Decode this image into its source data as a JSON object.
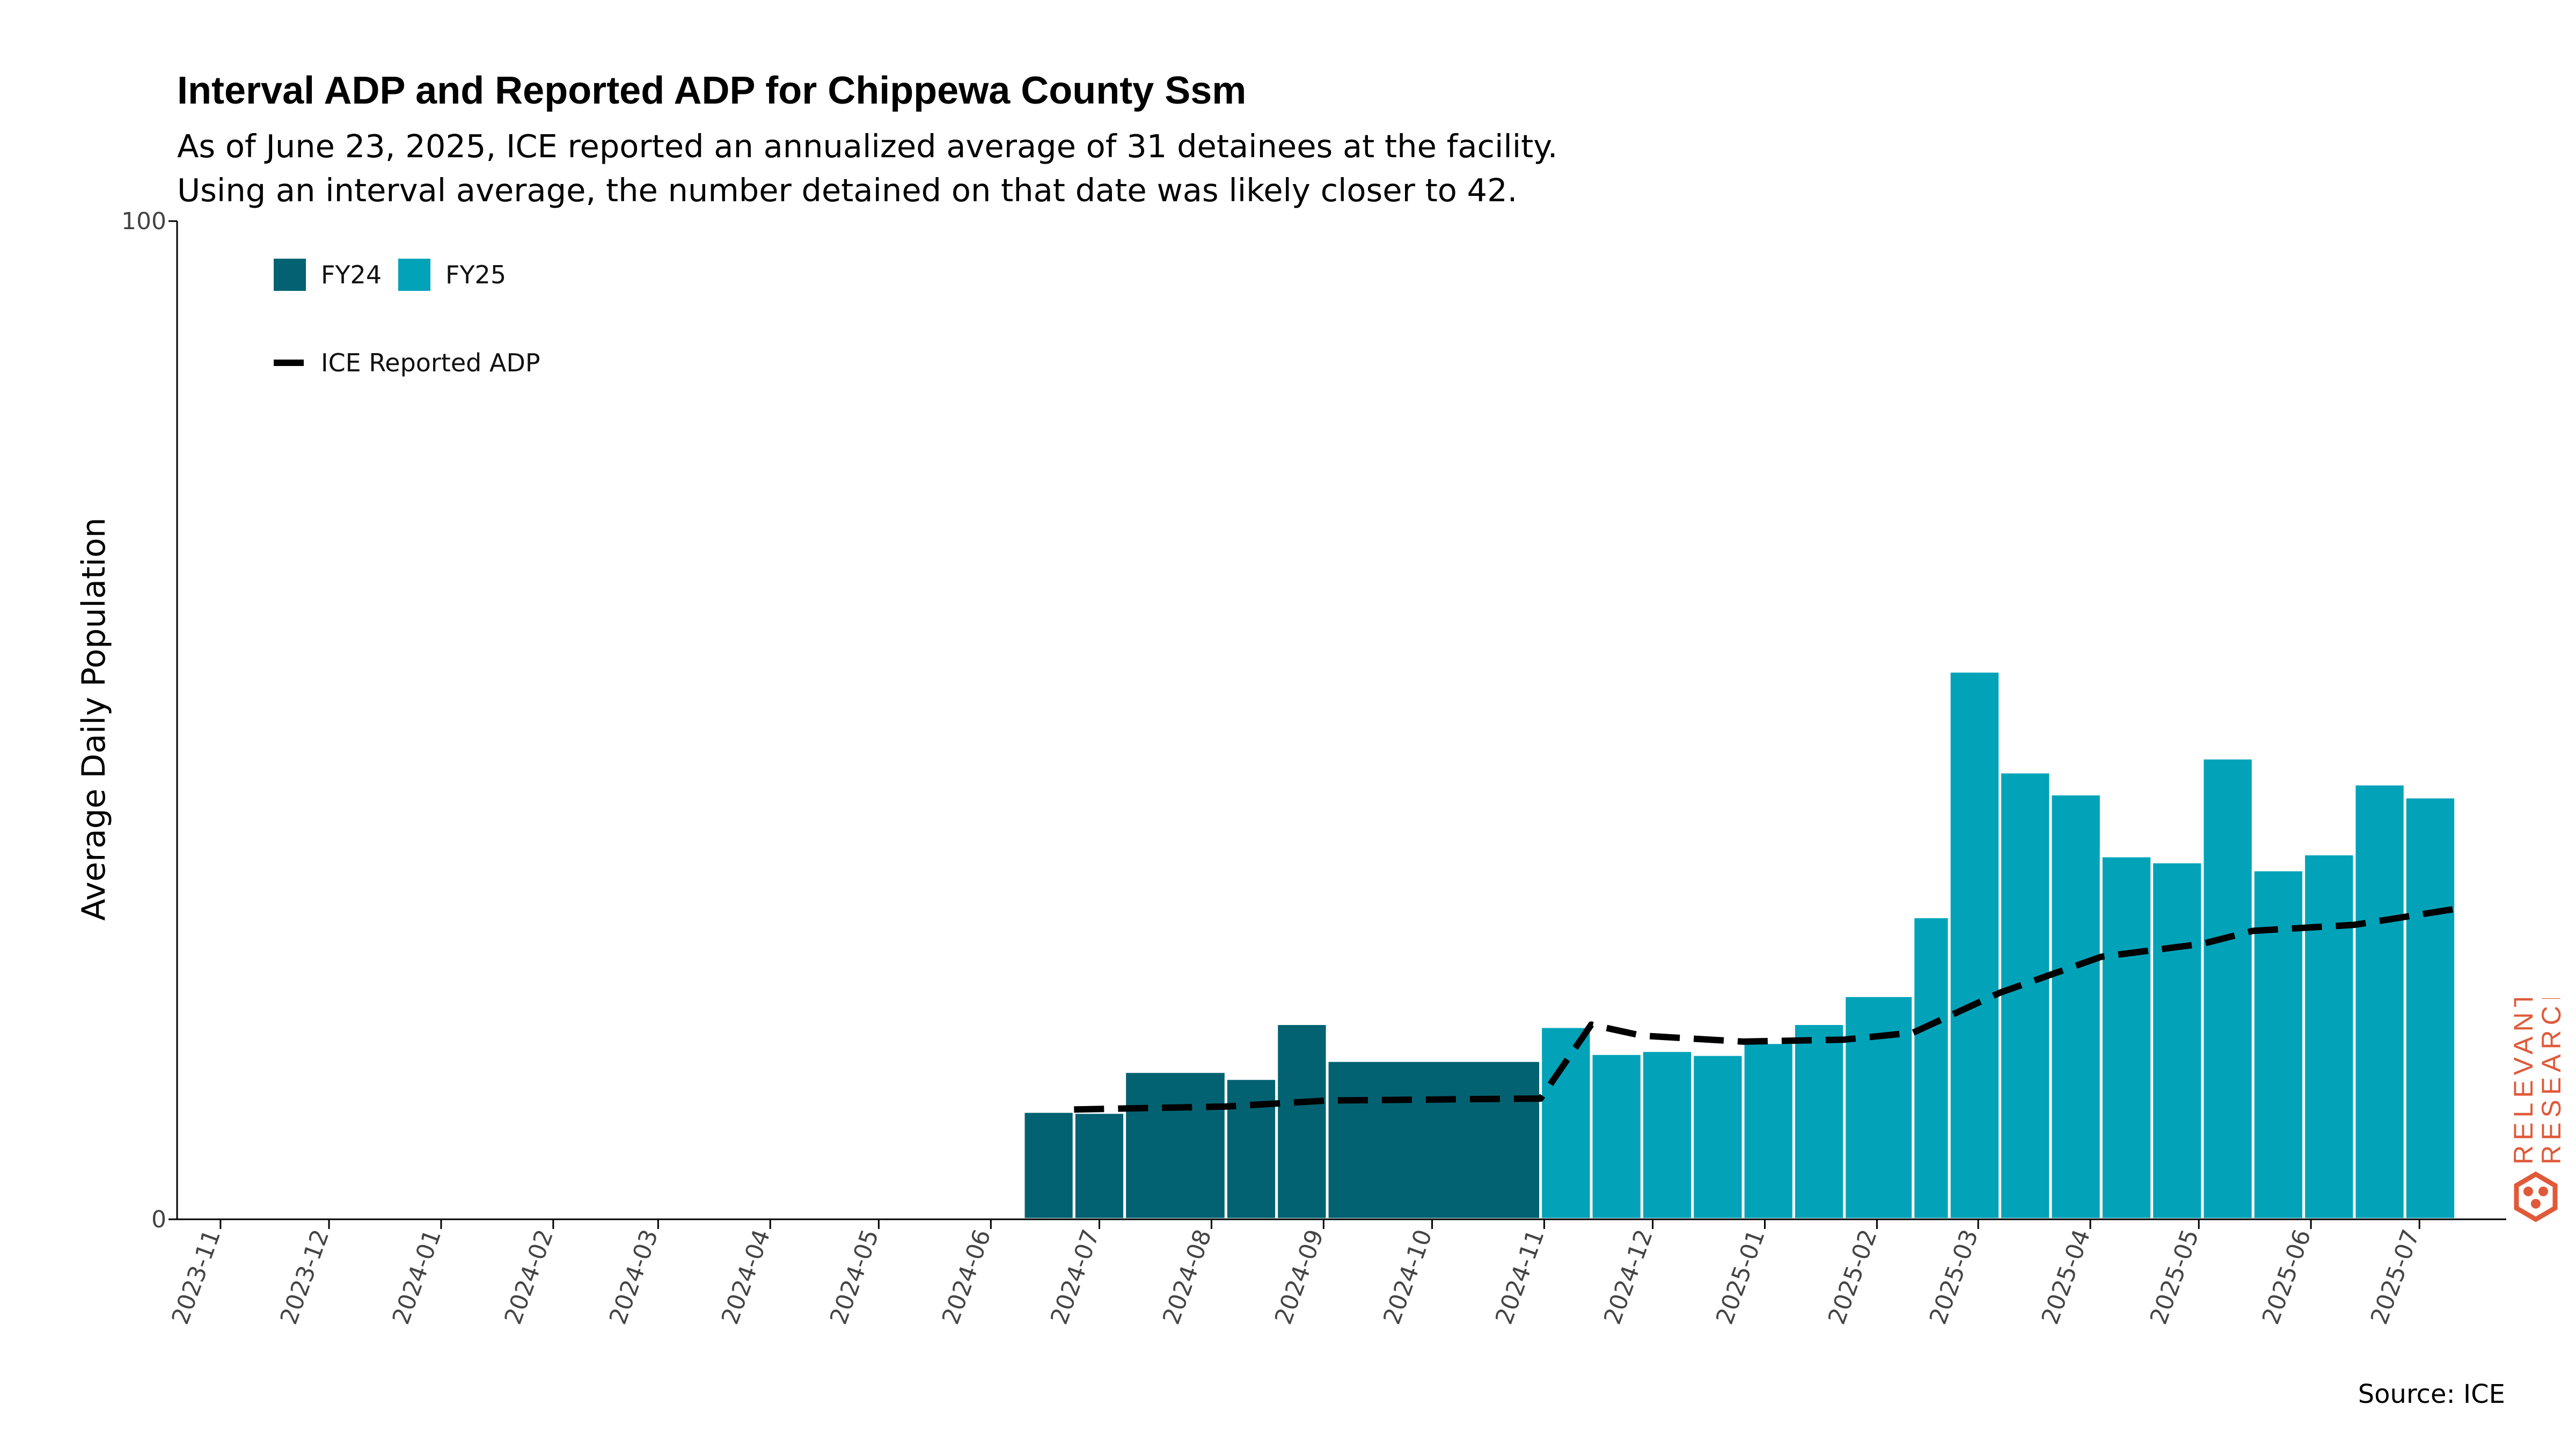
{
  "title": "Interval ADP and Reported ADP for Chippewa County Ssm",
  "subtitle_lines": [
    "As of June 23, 2025, ICE reported an annualized average of 31 detainees at the facility.",
    "Using an interval average, the number detained on that date was likely closer to 42."
  ],
  "source": "Source: ICE",
  "logo": {
    "line1": "RELEVANT",
    "line2": "RESEARCH",
    "color": "#e05a3a"
  },
  "colors": {
    "FY24": "#036272",
    "FY25": "#02a3b9",
    "line": "#000000"
  },
  "chart_data": {
    "type": "bar",
    "title": "Interval ADP and Reported ADP for Chippewa County Ssm",
    "ylabel": "Average Daily Population",
    "xlabel": "",
    "ylim": [
      0,
      100
    ],
    "yticks": [
      0,
      100
    ],
    "x_ticks": [
      "2023-11",
      "2023-12",
      "2024-01",
      "2024-02",
      "2024-03",
      "2024-04",
      "2024-05",
      "2024-06",
      "2024-07",
      "2024-08",
      "2024-09",
      "2024-10",
      "2024-11",
      "2024-12",
      "2025-01",
      "2025-02",
      "2025-03",
      "2025-04",
      "2025-05",
      "2025-06",
      "2025-07"
    ],
    "x_range": [
      "2023-10-20",
      "2025-07-25"
    ],
    "legend": [
      {
        "label": "FY24",
        "key": "FY24"
      },
      {
        "label": "FY25",
        "key": "FY25"
      },
      {
        "label": "ICE Reported ADP",
        "key": "line"
      }
    ],
    "series": [
      {
        "name": "FY24",
        "type": "bar",
        "bars": [
          {
            "start": "2024-06-10",
            "end": "2024-06-24",
            "value": 10.8
          },
          {
            "start": "2024-06-24",
            "end": "2024-07-08",
            "value": 10.7
          },
          {
            "start": "2024-07-08",
            "end": "2024-08-05",
            "value": 14.8
          },
          {
            "start": "2024-08-05",
            "end": "2024-08-19",
            "value": 14.1
          },
          {
            "start": "2024-08-19",
            "end": "2024-09-02",
            "value": 19.6
          },
          {
            "start": "2024-09-02",
            "end": "2024-10-31",
            "value": 15.9
          }
        ]
      },
      {
        "name": "FY25",
        "type": "bar",
        "bars": [
          {
            "start": "2024-10-31",
            "end": "2024-11-14",
            "value": 19.3
          },
          {
            "start": "2024-11-14",
            "end": "2024-11-28",
            "value": 16.6
          },
          {
            "start": "2024-11-28",
            "end": "2024-12-12",
            "value": 16.9
          },
          {
            "start": "2024-12-12",
            "end": "2024-12-26",
            "value": 16.5
          },
          {
            "start": "2024-12-26",
            "end": "2025-01-09",
            "value": 17.7
          },
          {
            "start": "2025-01-09",
            "end": "2025-01-23",
            "value": 19.6
          },
          {
            "start": "2025-01-23",
            "end": "2025-02-11",
            "value": 22.4
          },
          {
            "start": "2025-02-11",
            "end": "2025-02-21",
            "value": 30.3
          },
          {
            "start": "2025-02-21",
            "end": "2025-03-07",
            "value": 54.9
          },
          {
            "start": "2025-03-07",
            "end": "2025-03-21",
            "value": 44.8
          },
          {
            "start": "2025-03-21",
            "end": "2025-04-04",
            "value": 42.6
          },
          {
            "start": "2025-04-04",
            "end": "2025-04-18",
            "value": 36.4
          },
          {
            "start": "2025-04-18",
            "end": "2025-05-02",
            "value": 35.8
          },
          {
            "start": "2025-05-02",
            "end": "2025-05-16",
            "value": 46.2
          },
          {
            "start": "2025-05-16",
            "end": "2025-05-30",
            "value": 35.0
          },
          {
            "start": "2025-05-30",
            "end": "2025-06-13",
            "value": 36.6
          },
          {
            "start": "2025-06-13",
            "end": "2025-06-27",
            "value": 43.6
          },
          {
            "start": "2025-06-27",
            "end": "2025-07-11",
            "value": 42.3
          }
        ]
      },
      {
        "name": "ICE Reported ADP",
        "type": "line",
        "style": "dashed",
        "points": [
          {
            "x": "2024-06-24",
            "y": 11.0
          },
          {
            "x": "2024-08-05",
            "y": 11.3
          },
          {
            "x": "2024-09-02",
            "y": 11.9
          },
          {
            "x": "2024-10-31",
            "y": 12.1
          },
          {
            "x": "2024-11-14",
            "y": 19.5
          },
          {
            "x": "2024-11-28",
            "y": 18.4
          },
          {
            "x": "2024-12-26",
            "y": 17.8
          },
          {
            "x": "2025-01-23",
            "y": 18.0
          },
          {
            "x": "2025-02-11",
            "y": 18.7
          },
          {
            "x": "2025-03-07",
            "y": 22.7
          },
          {
            "x": "2025-04-04",
            "y": 26.3
          },
          {
            "x": "2025-05-02",
            "y": 27.6
          },
          {
            "x": "2025-05-16",
            "y": 28.9
          },
          {
            "x": "2025-06-13",
            "y": 29.5
          },
          {
            "x": "2025-06-27",
            "y": 30.3
          },
          {
            "x": "2025-07-11",
            "y": 31.1
          }
        ]
      }
    ]
  }
}
